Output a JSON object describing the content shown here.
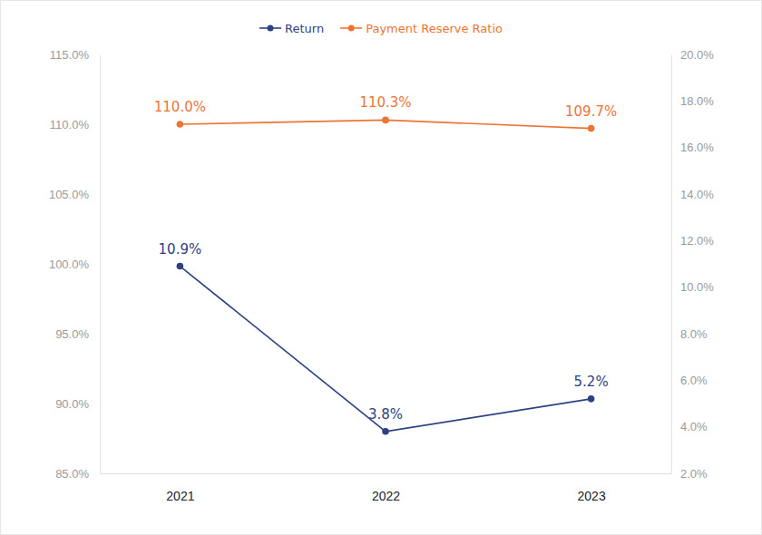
{
  "chart_data": {
    "type": "line",
    "categories": [
      "2021",
      "2022",
      "2023"
    ],
    "series": [
      {
        "name": "Return",
        "color": "#2e4182",
        "axis": "y2",
        "marker": "circle",
        "values": [
          10.9,
          3.8,
          5.2
        ],
        "value_labels": [
          "10.9%",
          "3.8%",
          "5.2%"
        ]
      },
      {
        "name": "Payment Reserve Ratio",
        "color": "#ec7535",
        "marker": "circle",
        "values": [
          110.0,
          110.3,
          109.7
        ],
        "value_labels": [
          "110.0%",
          "110.3%",
          "109.7%"
        ]
      }
    ],
    "ylim": [
      85,
      115
    ],
    "yticks": [
      {
        "value": 85,
        "label": "85.0%"
      },
      {
        "value": 90,
        "label": "90.0%"
      },
      {
        "value": 95,
        "label": "95.0%"
      },
      {
        "value": 100,
        "label": "100.0%"
      },
      {
        "value": 105,
        "label": "105.0%"
      },
      {
        "value": 110,
        "label": "110.0%"
      },
      {
        "value": 115,
        "label": "115.0%"
      }
    ],
    "y2lim": [
      2,
      20
    ],
    "y2ticks": [
      {
        "value": 2,
        "label": "2.0%"
      },
      {
        "value": 4,
        "label": "4.0%"
      },
      {
        "value": 6,
        "label": "6.0%"
      },
      {
        "value": 8,
        "label": "8.0%"
      },
      {
        "value": 10,
        "label": "10.0%"
      },
      {
        "value": 12,
        "label": "12.0%"
      },
      {
        "value": 14,
        "label": "14.0%"
      },
      {
        "value": 16,
        "label": "16.0%"
      },
      {
        "value": 18,
        "label": "18.0%"
      },
      {
        "value": 20,
        "label": "20.0%"
      }
    ],
    "grid": false,
    "legend": "top",
    "data_labels": true
  }
}
